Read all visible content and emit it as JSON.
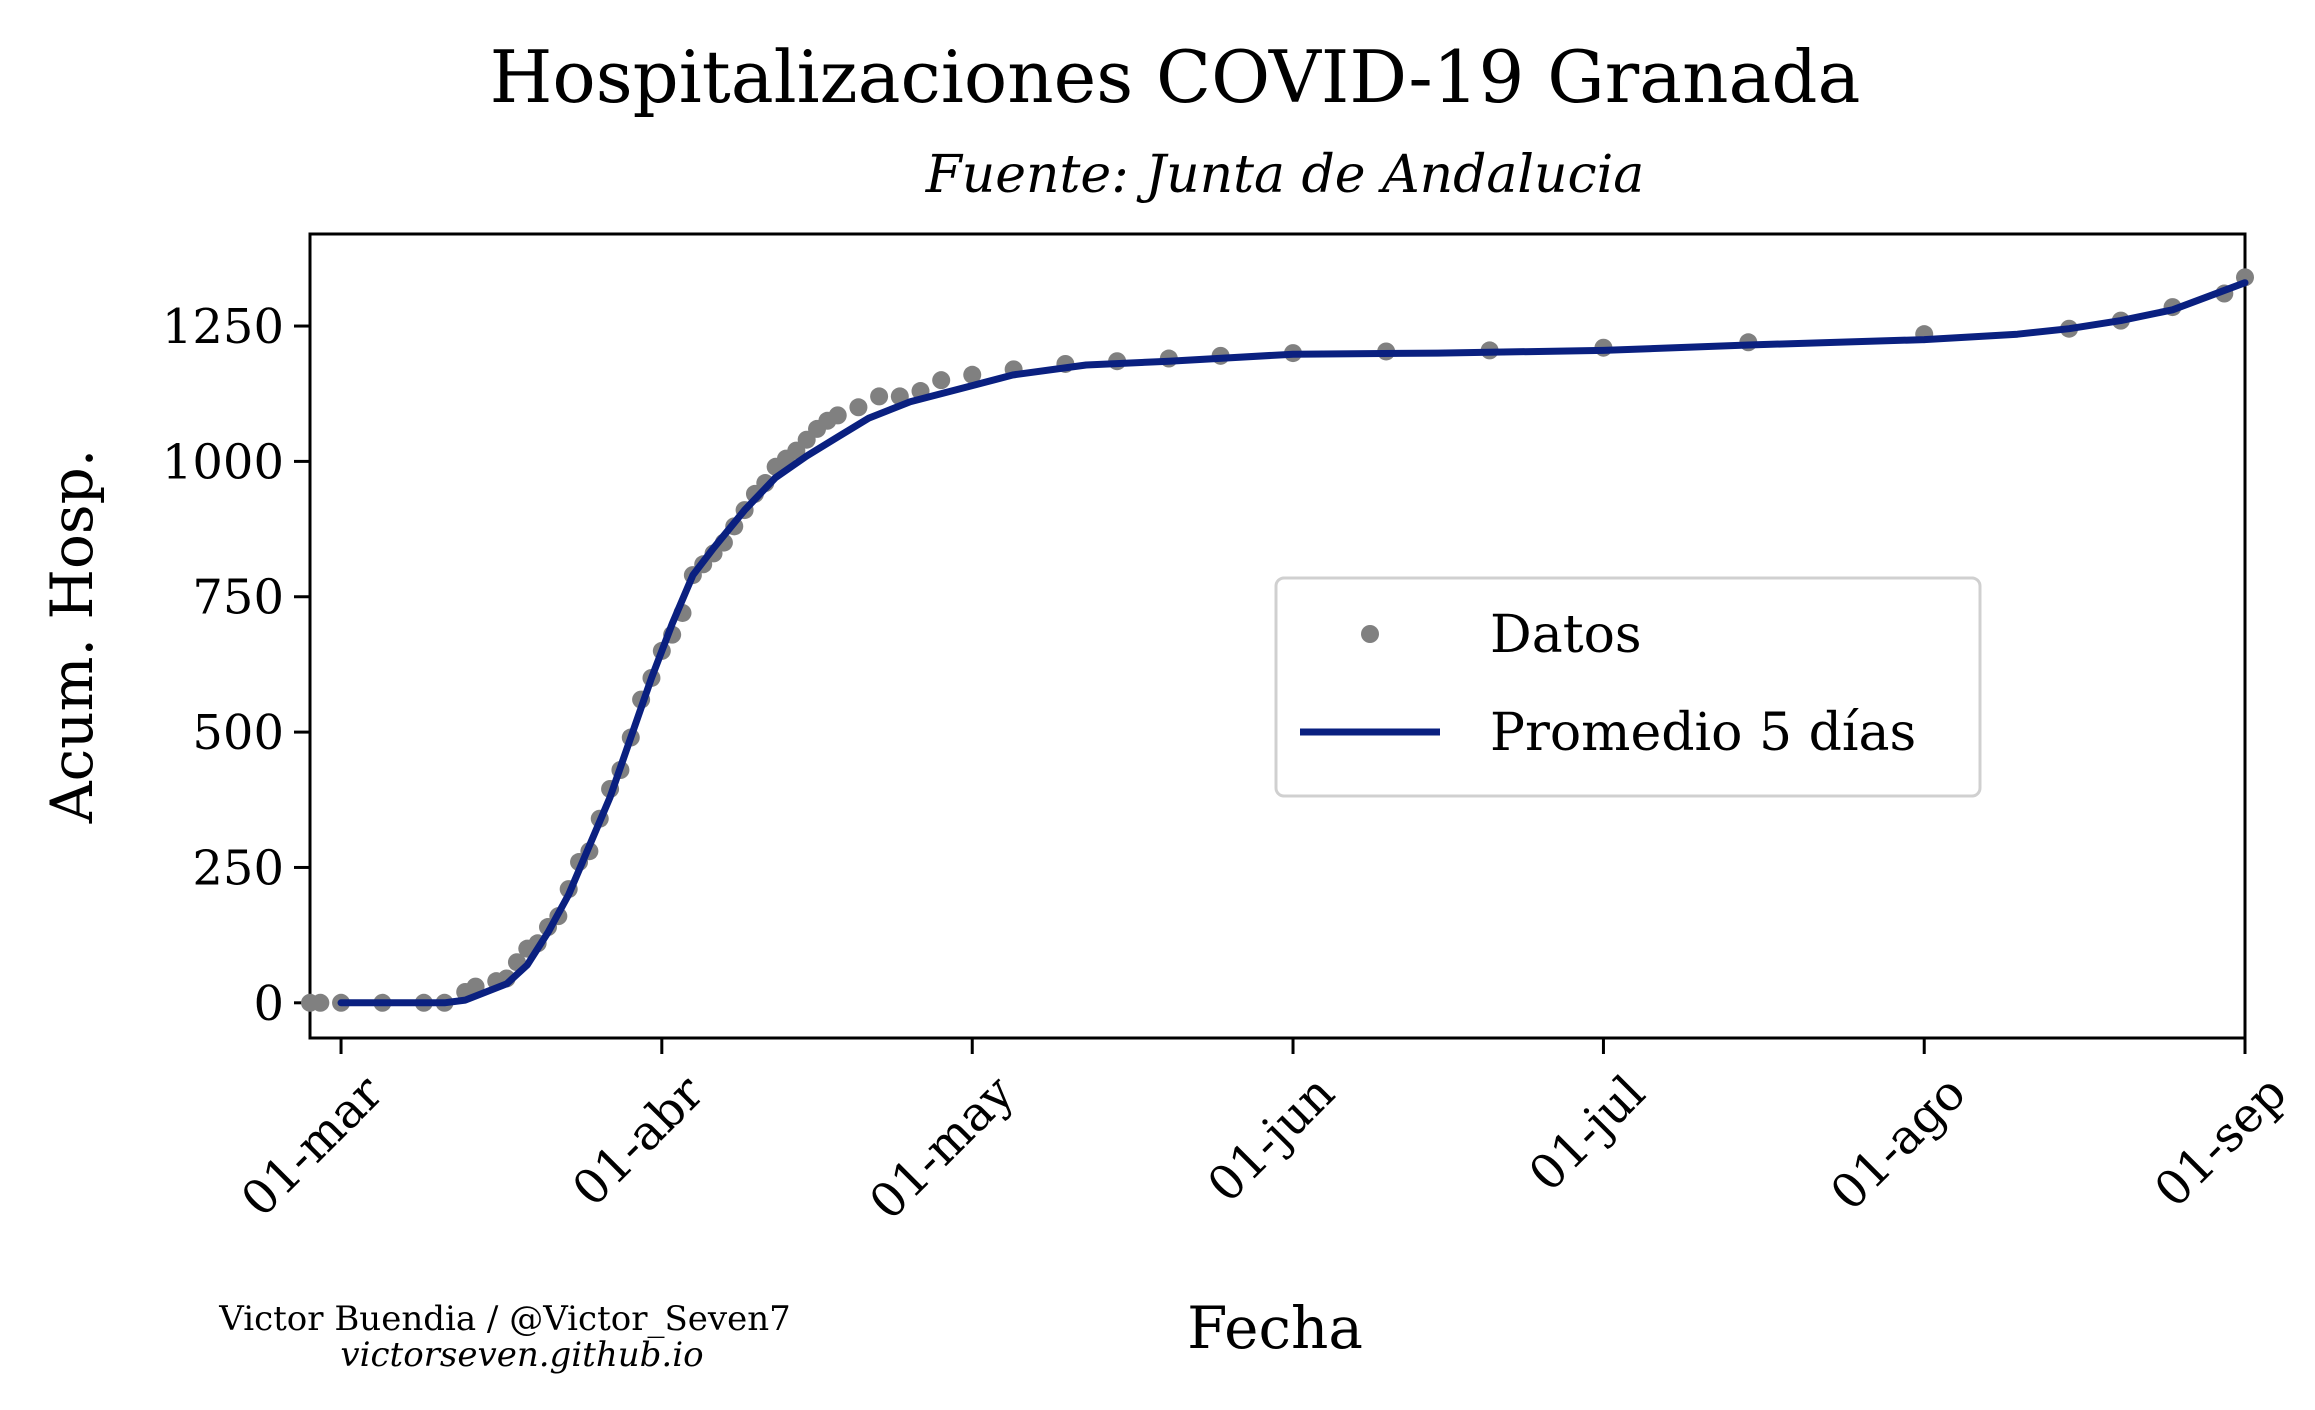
{
  "chart_data": {
    "type": "line",
    "title": "Hospitalizaciones COVID-19 Granada",
    "subtitle": "Fuente: Junta de Andalucia",
    "xlabel": "Fecha",
    "ylabel": "Acum. Hosp.",
    "xlim": [
      "2020-02-27",
      "2020-09-01"
    ],
    "ylim": [
      -65,
      1420
    ],
    "x_ticks": [
      {
        "date": "2020-03-01",
        "label": "01-mar"
      },
      {
        "date": "2020-04-01",
        "label": "01-abr"
      },
      {
        "date": "2020-05-01",
        "label": "01-may"
      },
      {
        "date": "2020-06-01",
        "label": "01-jun"
      },
      {
        "date": "2020-07-01",
        "label": "01-jul"
      },
      {
        "date": "2020-08-01",
        "label": "01-ago"
      },
      {
        "date": "2020-09-01",
        "label": "01-sep"
      }
    ],
    "y_ticks": [
      0,
      250,
      500,
      750,
      1000,
      1250
    ],
    "grid": false,
    "legend_position": "center-right",
    "series": [
      {
        "name": "Datos",
        "style": "points",
        "color": "#808080",
        "x": [
          "2020-02-27",
          "2020-02-28",
          "2020-03-01",
          "2020-03-05",
          "2020-03-09",
          "2020-03-11",
          "2020-03-13",
          "2020-03-14",
          "2020-03-16",
          "2020-03-17",
          "2020-03-18",
          "2020-03-19",
          "2020-03-20",
          "2020-03-21",
          "2020-03-22",
          "2020-03-23",
          "2020-03-24",
          "2020-03-25",
          "2020-03-26",
          "2020-03-27",
          "2020-03-28",
          "2020-03-29",
          "2020-03-30",
          "2020-03-31",
          "2020-04-01",
          "2020-04-02",
          "2020-04-03",
          "2020-04-04",
          "2020-04-05",
          "2020-04-06",
          "2020-04-07",
          "2020-04-08",
          "2020-04-09",
          "2020-04-10",
          "2020-04-11",
          "2020-04-12",
          "2020-04-13",
          "2020-04-14",
          "2020-04-15",
          "2020-04-16",
          "2020-04-17",
          "2020-04-18",
          "2020-04-20",
          "2020-04-22",
          "2020-04-24",
          "2020-04-26",
          "2020-04-28",
          "2020-05-01",
          "2020-05-05",
          "2020-05-10",
          "2020-05-15",
          "2020-05-20",
          "2020-05-25",
          "2020-06-01",
          "2020-06-10",
          "2020-06-20",
          "2020-07-01",
          "2020-07-15",
          "2020-08-01",
          "2020-08-15",
          "2020-08-20",
          "2020-08-25",
          "2020-08-30",
          "2020-09-01"
        ],
        "y": [
          0,
          0,
          0,
          0,
          0,
          0,
          20,
          30,
          40,
          45,
          75,
          100,
          110,
          140,
          160,
          210,
          260,
          280,
          340,
          395,
          430,
          490,
          560,
          600,
          650,
          680,
          720,
          790,
          810,
          830,
          850,
          880,
          910,
          940,
          960,
          990,
          1005,
          1020,
          1040,
          1060,
          1075,
          1085,
          1100,
          1120,
          1120,
          1130,
          1150,
          1160,
          1170,
          1180,
          1185,
          1190,
          1195,
          1200,
          1203,
          1205,
          1210,
          1220,
          1235,
          1245,
          1260,
          1285,
          1310,
          1340
        ]
      },
      {
        "name": "Promedio 5 días",
        "style": "line",
        "color": "#0a2080",
        "x": [
          "2020-03-01",
          "2020-03-11",
          "2020-03-13",
          "2020-03-15",
          "2020-03-17",
          "2020-03-19",
          "2020-03-21",
          "2020-03-23",
          "2020-03-25",
          "2020-03-27",
          "2020-03-29",
          "2020-03-31",
          "2020-04-02",
          "2020-04-04",
          "2020-04-06",
          "2020-04-09",
          "2020-04-12",
          "2020-04-15",
          "2020-04-18",
          "2020-04-21",
          "2020-04-25",
          "2020-05-01",
          "2020-05-05",
          "2020-05-12",
          "2020-05-20",
          "2020-06-01",
          "2020-06-15",
          "2020-07-01",
          "2020-07-15",
          "2020-08-01",
          "2020-08-10",
          "2020-08-15",
          "2020-08-20",
          "2020-08-25",
          "2020-09-01"
        ],
        "y": [
          0,
          0,
          5,
          20,
          35,
          70,
          130,
          200,
          290,
          380,
          490,
          600,
          700,
          790,
          840,
          910,
          970,
          1010,
          1045,
          1080,
          1110,
          1140,
          1160,
          1178,
          1185,
          1198,
          1200,
          1205,
          1215,
          1225,
          1235,
          1245,
          1260,
          1280,
          1330
        ]
      }
    ]
  },
  "credits": {
    "author": "Victor Buendia / @Victor_Seven7",
    "website": "victorseven.github.io"
  }
}
